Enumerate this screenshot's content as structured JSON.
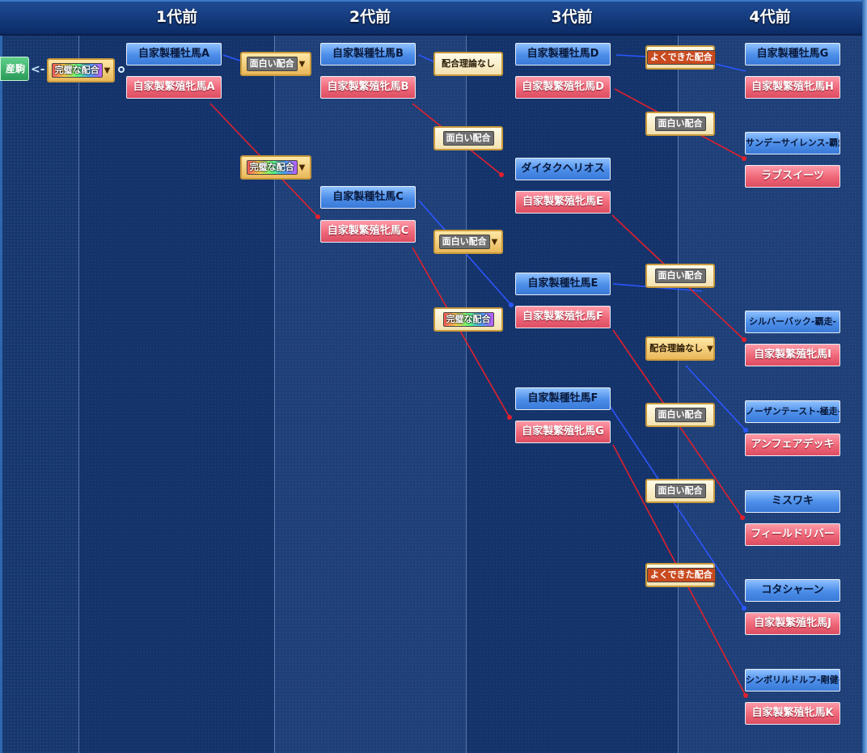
{
  "header": {
    "gen1": "1代前",
    "gen2": "2代前",
    "gen3": "3代前",
    "gen4": "4代前"
  },
  "subject": {
    "label": "産駒"
  },
  "horses": {
    "g1_sire": "自家製種牡馬A",
    "g1_mare": "自家製繁殖牝馬A",
    "g2_sire_b": "自家製種牡馬B",
    "g2_mare_b": "自家製繁殖牝馬B",
    "g2_sire_c": "自家製種牡馬C",
    "g2_mare_c": "自家製繁殖牝馬C",
    "g3_sire_d": "自家製種牡馬D",
    "g3_mare_d": "自家製繁殖牝馬D",
    "g3_sire_daitaku": "ダイタクヘリオス",
    "g3_mare_e": "自家製繁殖牝馬E",
    "g3_sire_e": "自家製種牡馬E",
    "g3_mare_f": "自家製繁殖牝馬F",
    "g3_sire_f": "自家製種牡馬F",
    "g3_mare_g": "自家製繁殖牝馬G",
    "g4_sire_g": "自家製種牡馬G",
    "g4_mare_h": "自家製繁殖牝馬H",
    "g4_sunday": "サンデーサイレンス-覇煌-",
    "g4_lovesweets": "ラブスイーツ",
    "g4_silverback": "シルバーバック-覇走-",
    "g4_mare_i": "自家製繁殖牝馬I",
    "g4_northern": "ノーザンテースト-極走-",
    "g4_anfair": "アンフェアデッキ",
    "g4_misuwaki": "ミスワキ",
    "g4_fieldriver": "フィールドリバー",
    "g4_kotashaan": "コタシャーン",
    "g4_mare_j": "自家製繁殖牝馬J",
    "g4_symboli": "シンボリルドルフ-剛健-",
    "g4_mare_k": "自家製繁殖牝馬K"
  },
  "ratings": {
    "r_subject": "完璧な配合",
    "r_a": "完璧な配合",
    "r_b": "面白い配合",
    "r_b2": "面白い配合",
    "r_c": "面白い配合",
    "r_c2": "完璧な配合",
    "r_d": "配合理論なし",
    "r_d2": "よくできた配合",
    "r_e": "面白い配合",
    "r_e2": "面白い配合",
    "r_f": "配合理論なし",
    "r_f2": "面白い配合",
    "r_g": "面白い配合",
    "r_g2": "よくできた配合"
  },
  "colors": {
    "sire": "#4b8de8",
    "mare": "#ee6677",
    "sire_line": "#2b56ff",
    "mare_line": "#e0202c"
  }
}
